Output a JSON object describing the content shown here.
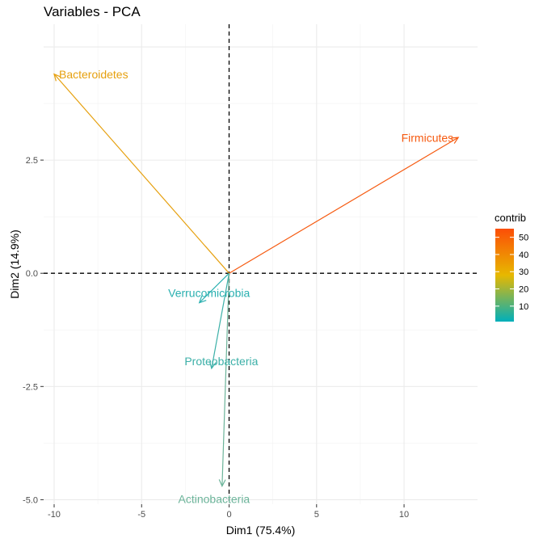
{
  "chart_data": {
    "type": "scatter",
    "title": "Variables - PCA",
    "xlabel": "Dim1 (75.4%)",
    "ylabel": "Dim2 (14.9%)",
    "xlim": [
      -10.6,
      14.2
    ],
    "ylim": [
      -5.1,
      5.5
    ],
    "x_ticks": [
      -10,
      -5,
      0,
      5,
      10
    ],
    "x_tick_labels": [
      "-10",
      "-5",
      "0",
      "5",
      "10"
    ],
    "y_ticks": [
      -5,
      -2.5,
      0,
      2.5
    ],
    "y_tick_labels": [
      "-5.0",
      "-2.5",
      "0.0",
      "2.5"
    ],
    "grid": true,
    "variables": [
      {
        "name": "Bacteroidetes",
        "x": -10.0,
        "y": 4.4,
        "contrib": 38,
        "color": "#e6a00e"
      },
      {
        "name": "Firmicutes",
        "x": 13.1,
        "y": 3.0,
        "contrib": 55,
        "color": "#f65a10"
      },
      {
        "name": "Verrucomicrobia",
        "x": -1.7,
        "y": -0.65,
        "contrib": 2,
        "color": "#2ab0b0"
      },
      {
        "name": "Proteobacteria",
        "x": -1.0,
        "y": -2.1,
        "contrib": 4,
        "color": "#3cb0a8"
      },
      {
        "name": "Actinobacteria",
        "x": -0.4,
        "y": -4.7,
        "contrib": 9,
        "color": "#6cb49a"
      }
    ],
    "legend": {
      "title": "contrib",
      "position": "right",
      "ticks": [
        10,
        20,
        30,
        40,
        50
      ],
      "tick_labels": [
        "10",
        "20",
        "30",
        "40",
        "50"
      ],
      "range": [
        1,
        55
      ],
      "colors": [
        "#00afbb",
        "#e7b800",
        "#fc4e07"
      ]
    }
  }
}
